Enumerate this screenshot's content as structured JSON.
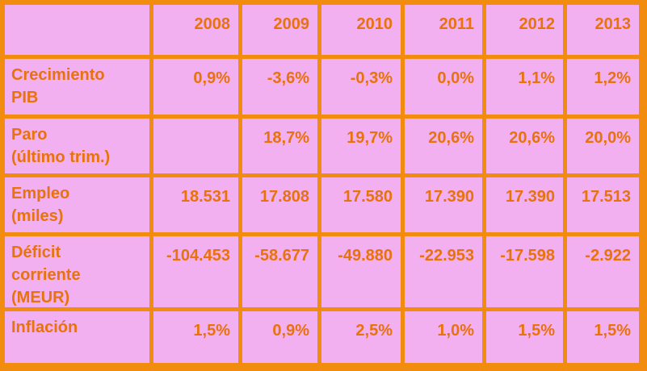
{
  "chart_data": {
    "type": "table",
    "colors": {
      "grid": "#F28C0F",
      "cell_background": "#F2B0F0",
      "text": "#E8720B"
    },
    "columns": [
      "2008",
      "2009",
      "2010",
      "2011",
      "2012",
      "2013"
    ],
    "rows": [
      {
        "label_lines": [
          "Crecimiento",
          "PIB"
        ],
        "values": [
          "0,9%",
          "-3,6%",
          "-0,3%",
          "0,0%",
          "1,1%",
          "1,2%"
        ]
      },
      {
        "label_lines": [
          "Paro",
          "(último trim.)"
        ],
        "values": [
          "",
          "18,7%",
          "19,7%",
          "20,6%",
          "20,6%",
          "20,0%"
        ]
      },
      {
        "label_lines": [
          "Empleo",
          "(miles)"
        ],
        "values": [
          "18.531",
          "17.808",
          "17.580",
          "17.390",
          "17.390",
          "17.513"
        ]
      },
      {
        "label_lines": [
          "Déficit",
          "corriente",
          "(MEUR)"
        ],
        "values": [
          "-104.453",
          "-58.677",
          "-49.880",
          "-22.953",
          "-17.598",
          "-2.922"
        ]
      },
      {
        "label_lines": [
          "Inflación"
        ],
        "values": [
          "1,5%",
          "0,9%",
          "2,5%",
          "1,0%",
          "1,5%",
          "1,5%"
        ]
      }
    ]
  }
}
